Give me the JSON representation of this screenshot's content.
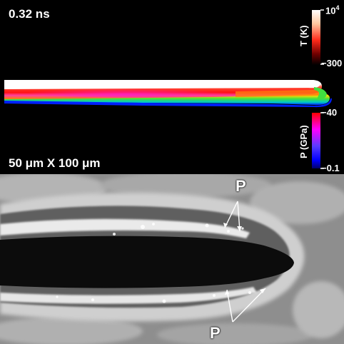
{
  "top_panel": {
    "time_label": "0.32 ns",
    "scale_label": "50 μm X 100 μm",
    "temperature_bar": {
      "title": "T (K)",
      "max_base": "10",
      "max_exp": "4",
      "min": "300",
      "colors": [
        "#ffffff",
        "#ffd0b0",
        "#ff3020",
        "#800000",
        "#000000"
      ]
    },
    "pressure_bar": {
      "title": "P (GPa)",
      "max": "40",
      "min": "0.1",
      "colors": [
        "#ff0000",
        "#ff00ff",
        "#6040ff",
        "#0000ff",
        "#000080"
      ]
    }
  },
  "bottom_panel": {
    "marker_top": "P",
    "marker_bottom": "P"
  }
}
